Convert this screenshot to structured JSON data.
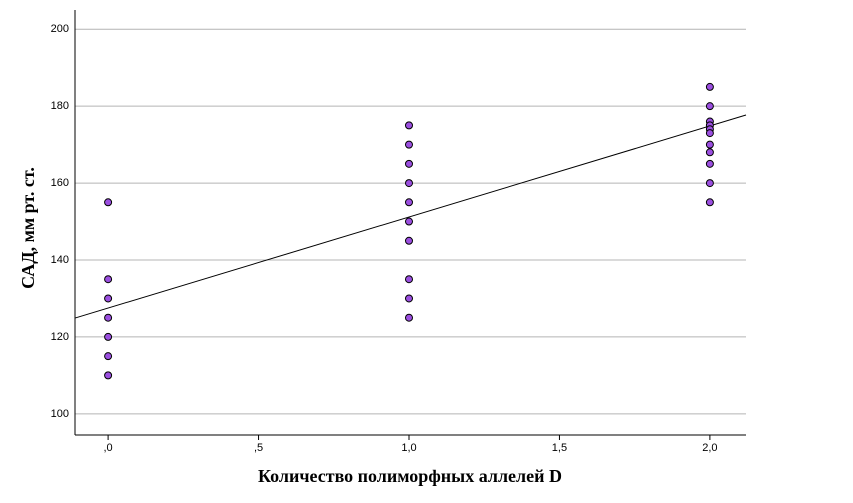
{
  "chart_data": {
    "type": "scatter",
    "x_label": "Количество полиморфных аллелей D",
    "y_label": "САД, мм рт. ст.",
    "xlim": [
      -0.11,
      2.12
    ],
    "ylim": [
      94.5,
      205
    ],
    "xticks": [
      {
        "value": 0,
        "label": ",0"
      },
      {
        "value": 0.5,
        "label": ",5"
      },
      {
        "value": 1,
        "label": "1,0"
      },
      {
        "value": 1.5,
        "label": "1,5"
      },
      {
        "value": 2,
        "label": "2,0"
      }
    ],
    "yticks": [
      100,
      120,
      140,
      160,
      180,
      200
    ],
    "grid": true,
    "series": [
      {
        "color": "#9b4fe0",
        "x": [
          0,
          0,
          0,
          0,
          0,
          0,
          0,
          1,
          1,
          1,
          1,
          1,
          1,
          1,
          1,
          1,
          1,
          2,
          2,
          2,
          2,
          2,
          2,
          2,
          2,
          2,
          2,
          2
        ],
        "values": [
          155,
          135,
          130,
          125,
          120,
          115,
          110,
          175,
          170,
          165,
          160,
          155,
          150,
          145,
          135,
          130,
          125,
          185,
          180,
          176,
          175,
          174,
          173,
          170,
          168,
          165,
          160,
          155
        ]
      }
    ],
    "fit_line": {
      "color": "#000000",
      "x": [
        -0.11,
        2.12
      ],
      "values": [
        124.9,
        177.7
      ]
    }
  }
}
